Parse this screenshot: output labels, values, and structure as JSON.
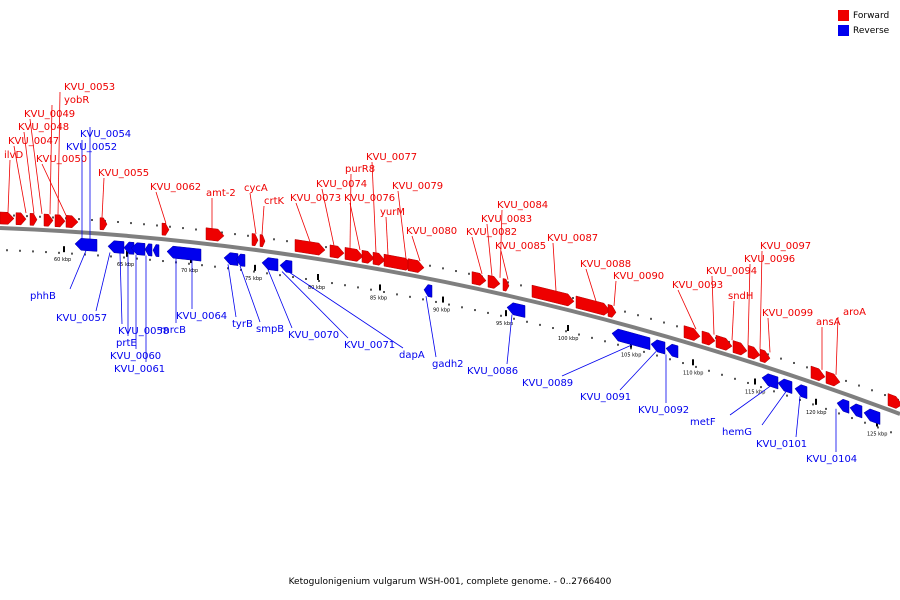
{
  "legend": {
    "forward": {
      "label": "Forward",
      "color": "#ee0000"
    },
    "reverse": {
      "label": "Reverse",
      "color": "#0000ee"
    }
  },
  "caption": "Ketogulonigenium vulgarum WSH-001, complete genome. - 0..2766400",
  "scale_unit": "kbp",
  "scale_labels": [
    "60 kbp",
    "65 kbp",
    "70 kbp",
    "75 kbp",
    "80 kbp",
    "85 kbp",
    "90 kbp",
    "95 kbp",
    "100 kbp",
    "105 kbp",
    "110 kbp",
    "115 kbp",
    "120 kbp",
    "125 kbp"
  ],
  "forward_genes": [
    "ilvD",
    "KVU_0047",
    "KVU_0048",
    "KVU_0049",
    "yobR",
    "KVU_0053",
    "KVU_0050",
    "KVU_0055",
    "KVU_0062",
    "amt-2",
    "cycA",
    "crtK",
    "KVU_0073",
    "KVU_0074",
    "purR8",
    "KVU_0076",
    "KVU_0077",
    "yurM",
    "KVU_0079",
    "KVU_0080",
    "KVU_0082",
    "KVU_0083",
    "KVU_0084",
    "KVU_0085",
    "KVU_0087",
    "KVU_0088",
    "KVU_0090",
    "KVU_0093",
    "KVU_0094",
    "sndH",
    "KVU_0096",
    "KVU_0097",
    "KVU_0099",
    "ansA",
    "aroA"
  ],
  "reverse_genes": [
    "KVU_0054",
    "KVU_0052",
    "phhB",
    "KVU_0057",
    "KVU_0058",
    "prtE",
    "KVU_0060",
    "KVU_0061",
    "mrcB",
    "KVU_0064",
    "tyrB",
    "smpB",
    "KVU_0070",
    "KVU_0071",
    "dapA",
    "gadh2",
    "KVU_0086",
    "KVU_0089",
    "KVU_0091",
    "KVU_0092",
    "metF",
    "hemG",
    "KVU_0101",
    "KVU_0104"
  ]
}
